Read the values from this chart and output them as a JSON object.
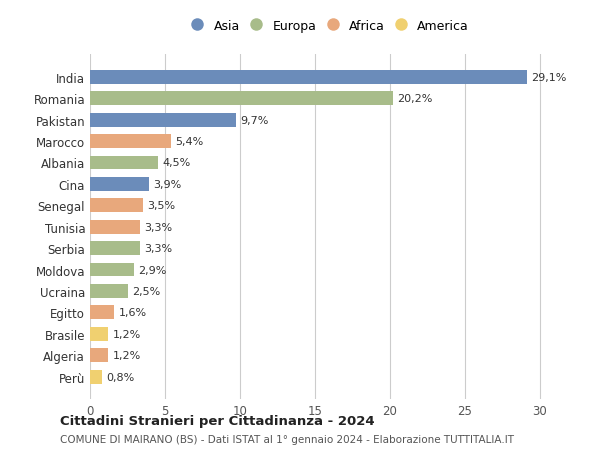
{
  "countries": [
    "India",
    "Romania",
    "Pakistan",
    "Marocco",
    "Albania",
    "Cina",
    "Senegal",
    "Tunisia",
    "Serbia",
    "Moldova",
    "Ucraina",
    "Egitto",
    "Brasile",
    "Algeria",
    "Perù"
  ],
  "values": [
    29.1,
    20.2,
    9.7,
    5.4,
    4.5,
    3.9,
    3.5,
    3.3,
    3.3,
    2.9,
    2.5,
    1.6,
    1.2,
    1.2,
    0.8
  ],
  "labels": [
    "29,1%",
    "20,2%",
    "9,7%",
    "5,4%",
    "4,5%",
    "3,9%",
    "3,5%",
    "3,3%",
    "3,3%",
    "2,9%",
    "2,5%",
    "1,6%",
    "1,2%",
    "1,2%",
    "0,8%"
  ],
  "continents": [
    "Asia",
    "Europa",
    "Asia",
    "Africa",
    "Europa",
    "Asia",
    "Africa",
    "Africa",
    "Europa",
    "Europa",
    "Europa",
    "Africa",
    "America",
    "Africa",
    "America"
  ],
  "colors": {
    "Asia": "#6b8cba",
    "Europa": "#a8bc8a",
    "Africa": "#e8a87c",
    "America": "#f0d070"
  },
  "legend_order": [
    "Asia",
    "Europa",
    "Africa",
    "America"
  ],
  "title": "Cittadini Stranieri per Cittadinanza - 2024",
  "subtitle": "COMUNE DI MAIRANO (BS) - Dati ISTAT al 1° gennaio 2024 - Elaborazione TUTTITALIA.IT",
  "xlim": [
    0,
    32
  ],
  "xticks": [
    0,
    5,
    10,
    15,
    20,
    25,
    30
  ],
  "bg_color": "#ffffff",
  "grid_color": "#cccccc",
  "bar_height": 0.65
}
